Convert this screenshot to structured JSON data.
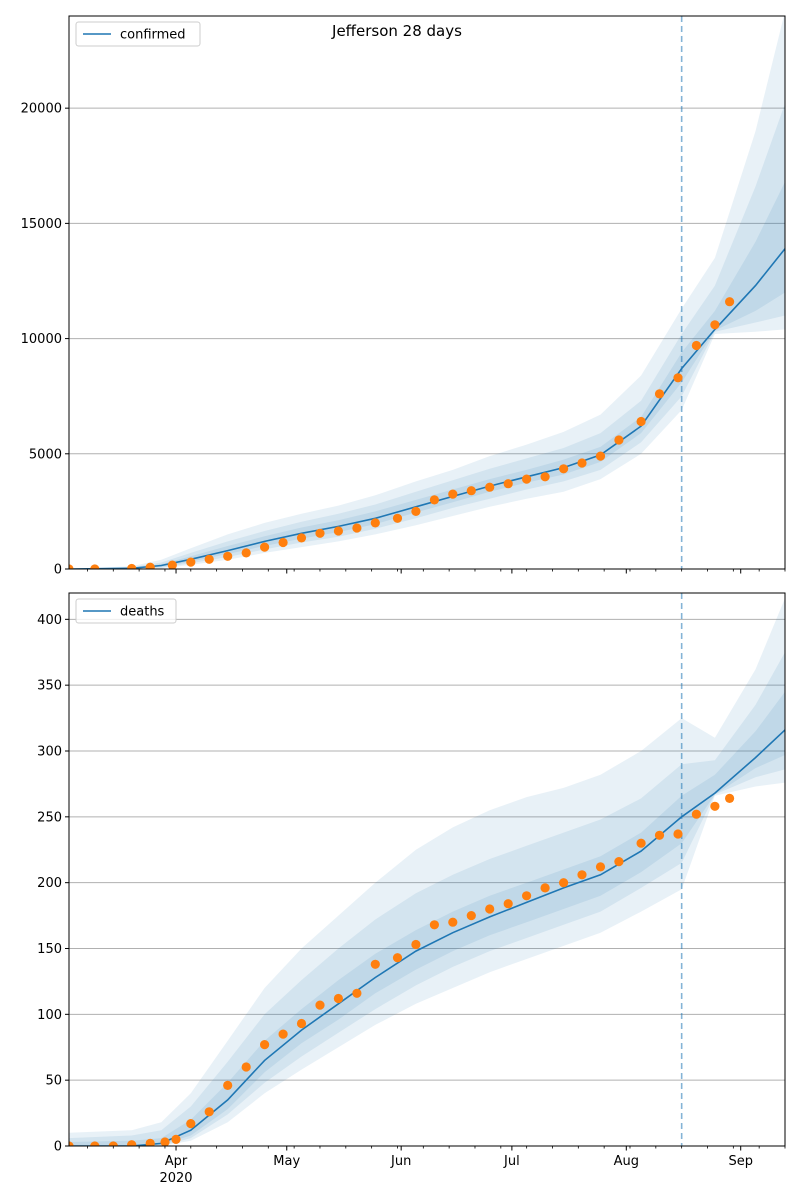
{
  "title": "Jefferson 28 days",
  "colors": {
    "model": "#1f77b4",
    "observed": "#ff7f0e",
    "band": "#1f77b4",
    "grid": "#b0b0b0"
  },
  "x_axis": {
    "start": "2020-03-03",
    "end": "2020-09-13",
    "tick_labels": [
      "Apr",
      "May",
      "Jun",
      "Jul",
      "Aug",
      "Sep"
    ],
    "tick_dates": [
      "2020-04-01",
      "2020-05-01",
      "2020-06-01",
      "2020-07-01",
      "2020-08-01",
      "2020-09-01"
    ],
    "year_label": "2020",
    "forecast_start": "2020-08-16"
  },
  "chart_data": [
    {
      "type": "line",
      "legend": "confirmed",
      "legend_position": "top-left",
      "ylim": [
        0,
        24000
      ],
      "yticks": [
        0,
        5000,
        10000,
        15000,
        20000
      ],
      "grid": "horizontal",
      "model": {
        "x": [
          "2020-03-03",
          "2020-03-20",
          "2020-03-28",
          "2020-04-05",
          "2020-04-15",
          "2020-04-25",
          "2020-05-05",
          "2020-05-15",
          "2020-05-25",
          "2020-06-05",
          "2020-06-15",
          "2020-06-25",
          "2020-07-05",
          "2020-07-15",
          "2020-07-25",
          "2020-08-05",
          "2020-08-16",
          "2020-08-25",
          "2020-09-05",
          "2020-09-13"
        ],
        "y": [
          0,
          30,
          150,
          420,
          800,
          1200,
          1550,
          1850,
          2200,
          2700,
          3150,
          3600,
          4000,
          4400,
          4950,
          6200,
          8700,
          10400,
          12300,
          13900
        ],
        "bands": [
          {
            "lower": [
              0,
              0,
              30,
              180,
              400,
              700,
              950,
              1200,
              1500,
              1900,
              2300,
              2700,
              3050,
              3350,
              3900,
              5000,
              6900,
              10200,
              10300,
              10400
            ],
            "upper": [
              0,
              120,
              400,
              900,
              1500,
              2000,
              2400,
              2750,
              3200,
              3800,
              4300,
              4900,
              5400,
              5950,
              6700,
              8400,
              11300,
              13500,
              19000,
              24200
            ]
          },
          {
            "lower": [
              0,
              5,
              60,
              250,
              520,
              850,
              1150,
              1400,
              1750,
              2200,
              2650,
              3050,
              3450,
              3800,
              4300,
              5500,
              7500,
              10300,
              10700,
              11000
            ],
            "upper": [
              0,
              80,
              280,
              700,
              1200,
              1650,
              2050,
              2400,
              2800,
              3350,
              3850,
              4350,
              4800,
              5250,
              5900,
              7300,
              10200,
              12300,
              16600,
              20200
            ]
          },
          {
            "lower": [
              0,
              15,
              100,
              320,
              650,
              1000,
              1320,
              1600,
              1950,
              2450,
              2900,
              3350,
              3750,
              4100,
              4650,
              5900,
              8100,
              10350,
              11200,
              12000
            ],
            "upper": [
              0,
              55,
              210,
              550,
              1000,
              1420,
              1800,
              2120,
              2500,
              3000,
              3450,
              3900,
              4300,
              4750,
              5300,
              6600,
              9400,
              11200,
              14200,
              16800
            ]
          }
        ]
      },
      "observed": {
        "x": [
          "2020-03-03",
          "2020-03-10",
          "2020-03-20",
          "2020-03-25",
          "2020-03-31",
          "2020-04-05",
          "2020-04-10",
          "2020-04-15",
          "2020-04-20",
          "2020-04-25",
          "2020-04-30",
          "2020-05-05",
          "2020-05-10",
          "2020-05-15",
          "2020-05-20",
          "2020-05-25",
          "2020-05-31",
          "2020-06-05",
          "2020-06-10",
          "2020-06-15",
          "2020-06-20",
          "2020-06-25",
          "2020-06-30",
          "2020-07-05",
          "2020-07-10",
          "2020-07-15",
          "2020-07-20",
          "2020-07-25",
          "2020-07-30",
          "2020-08-05",
          "2020-08-10",
          "2020-08-15",
          "2020-08-20",
          "2020-08-25",
          "2020-08-29"
        ],
        "y": [
          0,
          0,
          20,
          80,
          170,
          300,
          420,
          550,
          700,
          950,
          1150,
          1350,
          1550,
          1650,
          1780,
          2000,
          2200,
          2500,
          3000,
          3250,
          3400,
          3550,
          3700,
          3900,
          4000,
          4350,
          4600,
          4900,
          5600,
          6400,
          7600,
          8300,
          9700,
          10600,
          11600
        ]
      }
    },
    {
      "type": "line",
      "legend": "deaths",
      "legend_position": "top-left",
      "ylim": [
        0,
        420
      ],
      "yticks": [
        0,
        50,
        100,
        150,
        200,
        250,
        300,
        350,
        400
      ],
      "grid": "horizontal",
      "model": {
        "x": [
          "2020-03-03",
          "2020-03-20",
          "2020-03-28",
          "2020-04-05",
          "2020-04-15",
          "2020-04-25",
          "2020-05-05",
          "2020-05-15",
          "2020-05-25",
          "2020-06-05",
          "2020-06-15",
          "2020-06-25",
          "2020-07-05",
          "2020-07-15",
          "2020-07-25",
          "2020-08-05",
          "2020-08-16",
          "2020-08-25",
          "2020-09-05",
          "2020-09-13"
        ],
        "y": [
          0,
          0,
          2,
          12,
          35,
          65,
          88,
          108,
          128,
          148,
          162,
          174,
          185,
          196,
          206,
          224,
          250,
          268,
          295,
          316
        ],
        "bands": [
          {
            "lower": [
              0,
              0,
              0,
              4,
              18,
              40,
              58,
              75,
              92,
              108,
              120,
              132,
              142,
              152,
              162,
              178,
              195,
              266,
              273,
              276
            ],
            "upper": [
              10,
              12,
              18,
              40,
              80,
              120,
              150,
              175,
              200,
              225,
              242,
              255,
              265,
              272,
              282,
              300,
              325,
              310,
              362,
              416
            ]
          },
          {
            "lower": [
              0,
              0,
              0,
              6,
              24,
              48,
              68,
              86,
              104,
              122,
              136,
              148,
              158,
              168,
              178,
              196,
              215,
              267,
              280,
              286
            ],
            "upper": [
              6,
              8,
              12,
              30,
              64,
              100,
              126,
              150,
              172,
              192,
              206,
              218,
              228,
              238,
              248,
              264,
              290,
              293,
              335,
              375
            ]
          },
          {
            "lower": [
              0,
              0,
              1,
              8,
              28,
              56,
              78,
              96,
              116,
              134,
              148,
              160,
              170,
              180,
              190,
              208,
              230,
              267,
              287,
              297
            ],
            "upper": [
              3,
              4,
              6,
              20,
              48,
              80,
              104,
              126,
              146,
              164,
              178,
              190,
              200,
              210,
              220,
              238,
              266,
              282,
              315,
              345
            ]
          }
        ]
      },
      "observed": {
        "x": [
          "2020-03-03",
          "2020-03-10",
          "2020-03-15",
          "2020-03-20",
          "2020-03-25",
          "2020-03-29",
          "2020-04-01",
          "2020-04-05",
          "2020-04-10",
          "2020-04-15",
          "2020-04-20",
          "2020-04-25",
          "2020-04-30",
          "2020-05-05",
          "2020-05-10",
          "2020-05-15",
          "2020-05-20",
          "2020-05-25",
          "2020-05-31",
          "2020-06-05",
          "2020-06-10",
          "2020-06-15",
          "2020-06-20",
          "2020-06-25",
          "2020-06-30",
          "2020-07-05",
          "2020-07-10",
          "2020-07-15",
          "2020-07-20",
          "2020-07-25",
          "2020-07-30",
          "2020-08-05",
          "2020-08-10",
          "2020-08-15",
          "2020-08-20",
          "2020-08-25",
          "2020-08-29"
        ],
        "y": [
          0,
          0,
          0,
          1,
          2,
          3,
          5,
          17,
          26,
          46,
          60,
          77,
          85,
          93,
          107,
          112,
          116,
          138,
          143,
          153,
          168,
          170,
          175,
          180,
          184,
          190,
          196,
          200,
          206,
          212,
          216,
          230,
          236,
          237,
          252,
          258,
          264
        ]
      }
    }
  ]
}
